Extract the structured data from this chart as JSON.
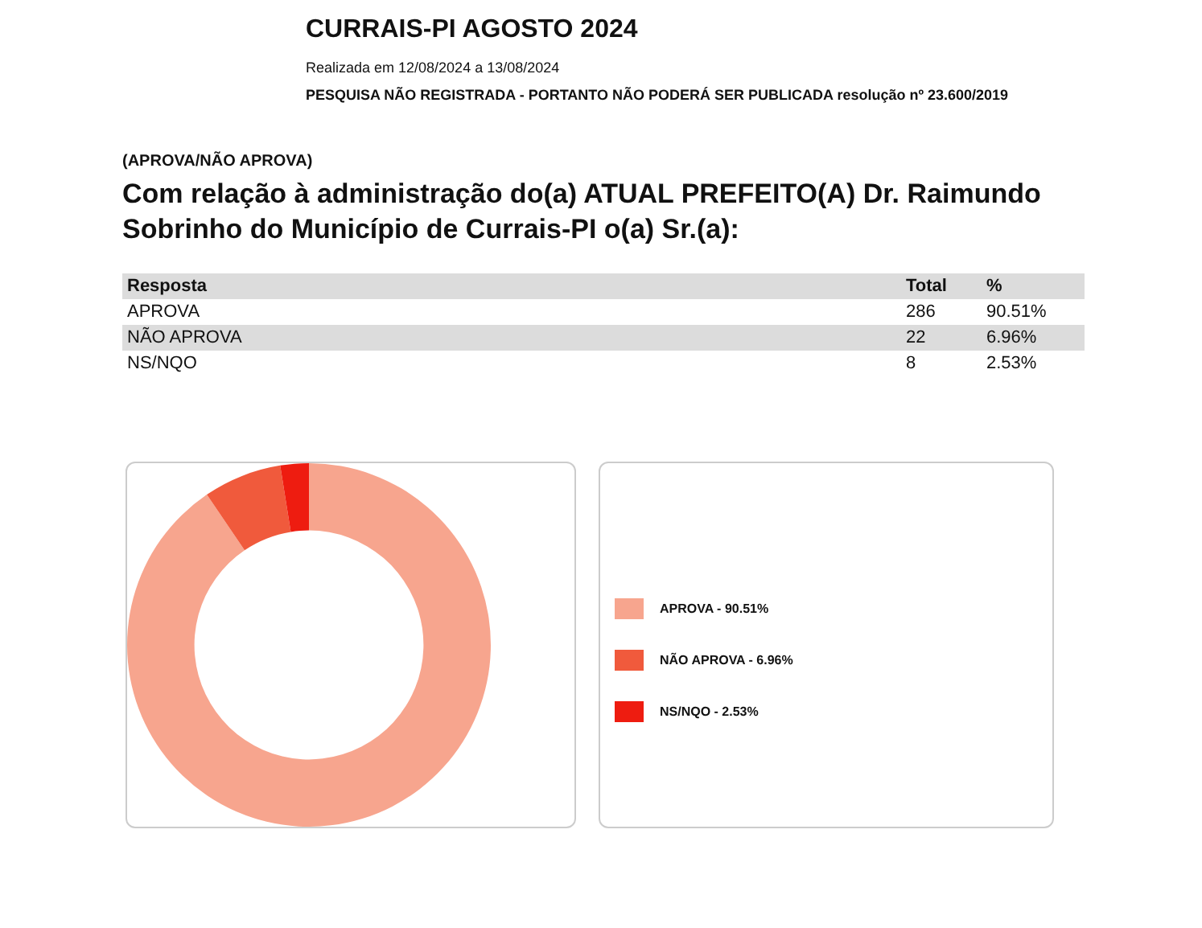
{
  "chart_data": [
    {
      "type": "other",
      "title": "CURRAIS-PI AGOSTO 2024",
      "subtitle": "Com relação à administração do(a) ATUAL PREFEITO(A) Dr. Raimundo Sobrinho do Município de Currais-PI o(a) Sr.(a):",
      "annotations": [
        "Realizada em 12/08/2024 a 13/08/2024",
        "PESQUISA NÃO REGISTRADA - PORTANTO NÃO PODERÁ SER PUBLICADA resolução nº 23.600/2019",
        "(APROVA/NÃO APROVA)"
      ],
      "xlabel": "Resposta",
      "categories": [
        "APROVA",
        "NÃO APROVA",
        "NS/NQO"
      ],
      "series": [
        {
          "name": "Total",
          "values": [
            286,
            22,
            8
          ]
        },
        {
          "name": "%",
          "values": [
            90.51,
            6.96,
            2.53
          ],
          "value_labels": [
            "90.51%",
            "6.96%",
            "2.53%"
          ]
        }
      ],
      "data_labels": true
    },
    {
      "type": "donut",
      "categories": [
        "APROVA - 90.51%",
        "NÃO APROVA - 6.96%",
        "NS/NQO - 2.53%"
      ],
      "values": [
        90.51,
        6.96,
        2.53
      ],
      "colors": [
        "#f7a58e",
        "#f05a3c",
        "#ee1c10"
      ],
      "legend": "right"
    }
  ]
}
